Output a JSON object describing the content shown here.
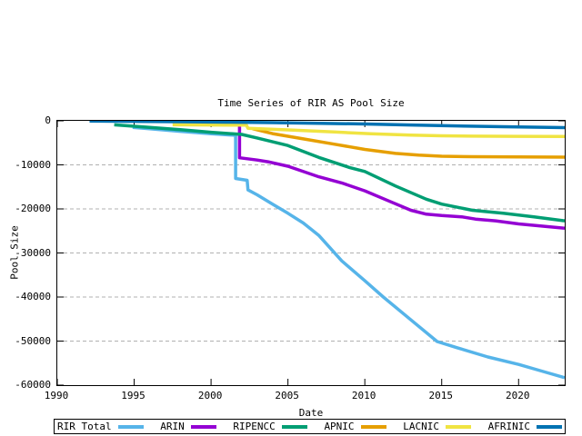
{
  "chart_data": {
    "type": "line",
    "title": "Time Series of RIR AS Pool Size",
    "xlabel": "Date",
    "ylabel": "Pool Size",
    "xlim": [
      1990,
      2023
    ],
    "ylim": [
      -60000,
      0
    ],
    "xticks": [
      1990,
      1995,
      2000,
      2005,
      2010,
      2015,
      2020
    ],
    "yticks": [
      0,
      -10000,
      -20000,
      -30000,
      -40000,
      -50000,
      -60000
    ],
    "grid": "horizontal-dashed",
    "grid_color": "#b0b0b0",
    "axis_color": "#000000",
    "legend_position": "below-outside-boxed",
    "series": [
      {
        "name": "RIR Total",
        "color": "#56b4e9",
        "points": [
          [
            1994.9,
            -1500
          ],
          [
            1996,
            -1800
          ],
          [
            1998,
            -2400
          ],
          [
            2000,
            -2950
          ],
          [
            2001.6,
            -3300
          ],
          [
            2001.6,
            -13100
          ],
          [
            2002.35,
            -13500
          ],
          [
            2002.4,
            -15700
          ],
          [
            2003,
            -16800
          ],
          [
            2004,
            -18900
          ],
          [
            2005,
            -21000
          ],
          [
            2006,
            -23200
          ],
          [
            2007,
            -26000
          ],
          [
            2008.5,
            -31800
          ],
          [
            2010,
            -36300
          ],
          [
            2011.2,
            -40000
          ],
          [
            2013,
            -45200
          ],
          [
            2014.7,
            -50100
          ],
          [
            2016,
            -51500
          ],
          [
            2018,
            -53600
          ],
          [
            2020,
            -55300
          ],
          [
            2021.5,
            -56800
          ],
          [
            2023,
            -58300
          ]
        ]
      },
      {
        "name": "ARIN",
        "color": "#9400d3",
        "points": [
          [
            2001.85,
            -1000
          ],
          [
            2001.85,
            -8400
          ],
          [
            2003,
            -8900
          ],
          [
            2003.7,
            -9300
          ],
          [
            2005,
            -10300
          ],
          [
            2007,
            -12700
          ],
          [
            2008.5,
            -14100
          ],
          [
            2010,
            -15900
          ],
          [
            2011.5,
            -18100
          ],
          [
            2013,
            -20300
          ],
          [
            2014,
            -21200
          ],
          [
            2015,
            -21500
          ],
          [
            2016.3,
            -21800
          ],
          [
            2017.2,
            -22300
          ],
          [
            2018.5,
            -22700
          ],
          [
            2020,
            -23400
          ],
          [
            2021.5,
            -23900
          ],
          [
            2023,
            -24400
          ]
        ]
      },
      {
        "name": "RIPENCC",
        "color": "#009e73",
        "points": [
          [
            1993.7,
            -900
          ],
          [
            1996,
            -1500
          ],
          [
            1998,
            -2000
          ],
          [
            2000,
            -2600
          ],
          [
            2002,
            -3100
          ],
          [
            2003,
            -3900
          ],
          [
            2005,
            -5600
          ],
          [
            2007,
            -8300
          ],
          [
            2009,
            -10600
          ],
          [
            2010,
            -11500
          ],
          [
            2012,
            -14800
          ],
          [
            2014,
            -17800
          ],
          [
            2015,
            -18900
          ],
          [
            2017,
            -20300
          ],
          [
            2019,
            -21000
          ],
          [
            2021,
            -21800
          ],
          [
            2023,
            -22700
          ]
        ]
      },
      {
        "name": "APNIC",
        "color": "#e69f00",
        "points": [
          [
            2002.7,
            -1800
          ],
          [
            2004,
            -2900
          ],
          [
            2006,
            -4100
          ],
          [
            2008,
            -5300
          ],
          [
            2010,
            -6500
          ],
          [
            2012,
            -7400
          ],
          [
            2013.5,
            -7800
          ],
          [
            2015,
            -8050
          ],
          [
            2017,
            -8150
          ],
          [
            2020,
            -8200
          ],
          [
            2023,
            -8250
          ]
        ]
      },
      {
        "name": "LACNIC",
        "color": "#f0e442",
        "points": [
          [
            1997.5,
            -900
          ],
          [
            2000,
            -950
          ],
          [
            2002.3,
            -1000
          ],
          [
            2002.4,
            -1700
          ],
          [
            2005,
            -2060
          ],
          [
            2008,
            -2540
          ],
          [
            2010.4,
            -2950
          ],
          [
            2013,
            -3230
          ],
          [
            2015,
            -3400
          ],
          [
            2017,
            -3480
          ],
          [
            2020,
            -3520
          ],
          [
            2023,
            -3550
          ]
        ]
      },
      {
        "name": "AFRINIC",
        "color": "#0072b2",
        "points": [
          [
            1992.1,
            -60
          ],
          [
            1995,
            -120
          ],
          [
            1998,
            -200
          ],
          [
            2001,
            -300
          ],
          [
            2004,
            -420
          ],
          [
            2007,
            -560
          ],
          [
            2010,
            -720
          ],
          [
            2013,
            -950
          ],
          [
            2016,
            -1150
          ],
          [
            2019,
            -1350
          ],
          [
            2023,
            -1550
          ]
        ]
      }
    ]
  }
}
